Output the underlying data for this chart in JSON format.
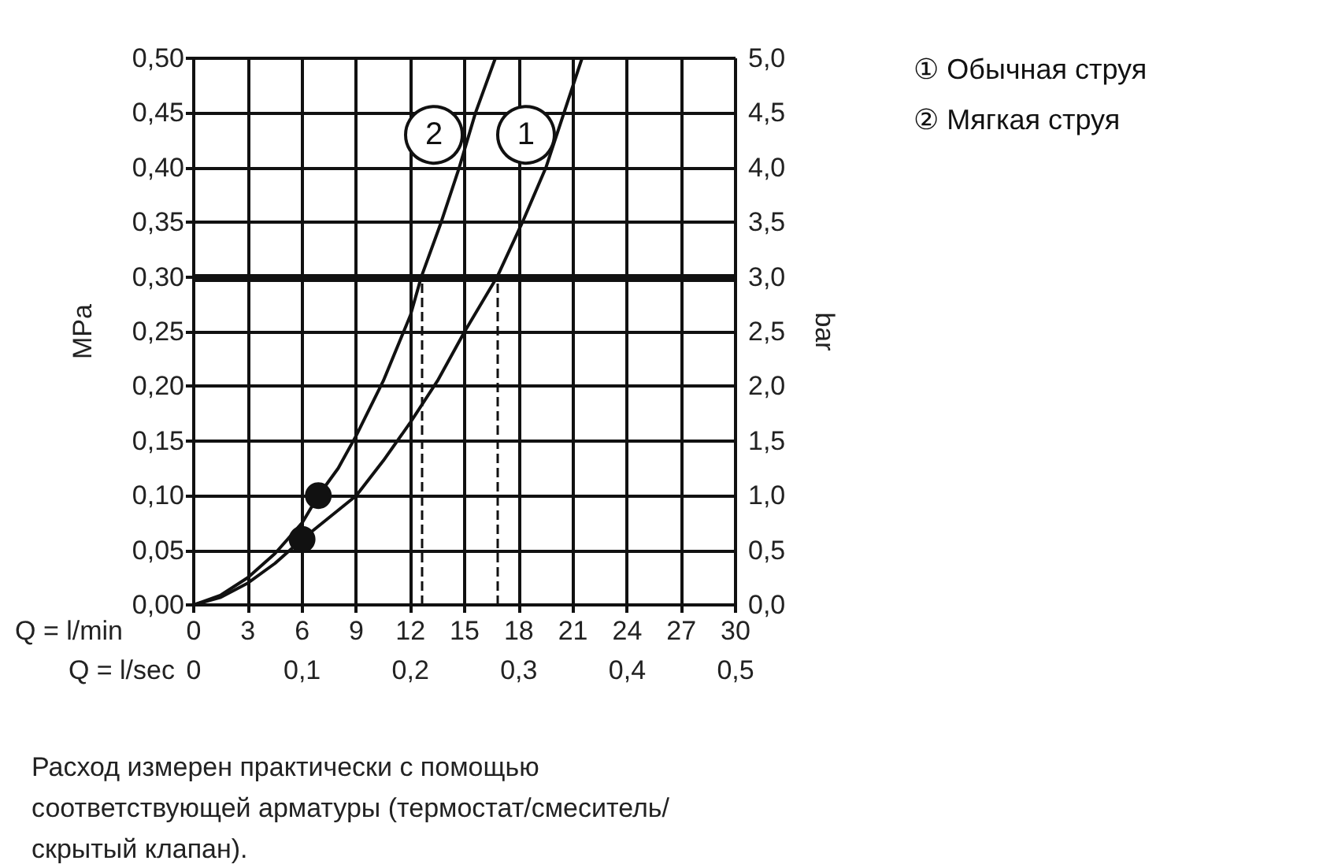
{
  "chart_data": {
    "type": "line",
    "xlabel": "Q = l/min",
    "x2label": "Q = l/sec",
    "ylabel": "MPa",
    "y2label": "bar",
    "xlim": [
      0,
      30
    ],
    "xticks": [
      0,
      3,
      6,
      9,
      12,
      15,
      18,
      21,
      24,
      27,
      30
    ],
    "x2lim": [
      0,
      0.5
    ],
    "x2ticks": [
      {
        "value": 0,
        "label": "0"
      },
      {
        "value": 0.1,
        "label": "0,1"
      },
      {
        "value": 0.2,
        "label": "0,2"
      },
      {
        "value": 0.3,
        "label": "0,3"
      },
      {
        "value": 0.4,
        "label": "0,4"
      },
      {
        "value": 0.5,
        "label": "0,5"
      }
    ],
    "ylim": [
      0,
      0.5
    ],
    "yticks": [
      {
        "value": 0,
        "label": "0,00"
      },
      {
        "value": 0.05,
        "label": "0,05"
      },
      {
        "value": 0.1,
        "label": "0,10"
      },
      {
        "value": 0.15,
        "label": "0,15"
      },
      {
        "value": 0.2,
        "label": "0,20"
      },
      {
        "value": 0.25,
        "label": "0,25"
      },
      {
        "value": 0.3,
        "label": "0,30"
      },
      {
        "value": 0.35,
        "label": "0,35"
      },
      {
        "value": 0.4,
        "label": "0,40"
      },
      {
        "value": 0.45,
        "label": "0,45"
      },
      {
        "value": 0.5,
        "label": "0,50"
      }
    ],
    "y2lim": [
      0,
      5
    ],
    "y2ticks": [
      {
        "value": 0,
        "label": "0,0"
      },
      {
        "value": 0.5,
        "label": "0,5"
      },
      {
        "value": 1,
        "label": "1,0"
      },
      {
        "value": 1.5,
        "label": "1,5"
      },
      {
        "value": 2,
        "label": "2,0"
      },
      {
        "value": 2.5,
        "label": "2,5"
      },
      {
        "value": 3,
        "label": "3,0"
      },
      {
        "value": 3.5,
        "label": "3,5"
      },
      {
        "value": 4,
        "label": "4,0"
      },
      {
        "value": 4.5,
        "label": "4,5"
      },
      {
        "value": 5,
        "label": "5,0"
      }
    ],
    "grid": true,
    "legend": "top right",
    "marker": "none",
    "line_style": "solid",
    "series": [
      {
        "name": "① Обычная струя",
        "color": "#111111",
        "x": [
          0,
          1.5,
          3,
          4.5,
          6,
          7.5,
          9,
          10.5,
          12,
          13.5,
          15,
          16.8,
          18.2,
          19.5,
          20.5,
          21.5
        ],
        "values": [
          0,
          0.007,
          0.02,
          0.038,
          0.06,
          0.08,
          0.1,
          0.132,
          0.167,
          0.205,
          0.25,
          0.3,
          0.35,
          0.4,
          0.45,
          0.5
        ]
      },
      {
        "name": "② Мягкая струя",
        "color": "#111111",
        "x": [
          0,
          1.5,
          3,
          4.5,
          6,
          6.9,
          8,
          9,
          10.5,
          12,
          12.6,
          13.7,
          14.7,
          15.6,
          16.7
        ],
        "values": [
          0,
          0.009,
          0.025,
          0.047,
          0.075,
          0.1,
          0.125,
          0.155,
          0.205,
          0.265,
          0.3,
          0.35,
          0.4,
          0.45,
          0.5
        ]
      },
      {
        "type": "scatter",
        "marker": "circle",
        "color": "#111111",
        "x": [
          6.0,
          6.9
        ],
        "values": [
          0.06,
          0.1
        ]
      }
    ],
    "ref_lines": [
      {
        "axis": "y",
        "value": 0.3,
        "color": "#111111",
        "line_style": "solid"
      },
      {
        "axis": "x",
        "value": 12.6,
        "color": "#111111",
        "line_style": "dashed"
      },
      {
        "axis": "x",
        "value": 16.8,
        "color": "#111111",
        "line_style": "dashed"
      }
    ],
    "annotations": [
      {
        "text": "1",
        "x": 18.4,
        "y": 0.43
      },
      {
        "text": "2",
        "x": 13.3,
        "y": 0.43
      },
      "Расход измерен практически с помощью соответствующей арматуры (термостат/смеситель/скрытый клапан)."
    ]
  }
}
